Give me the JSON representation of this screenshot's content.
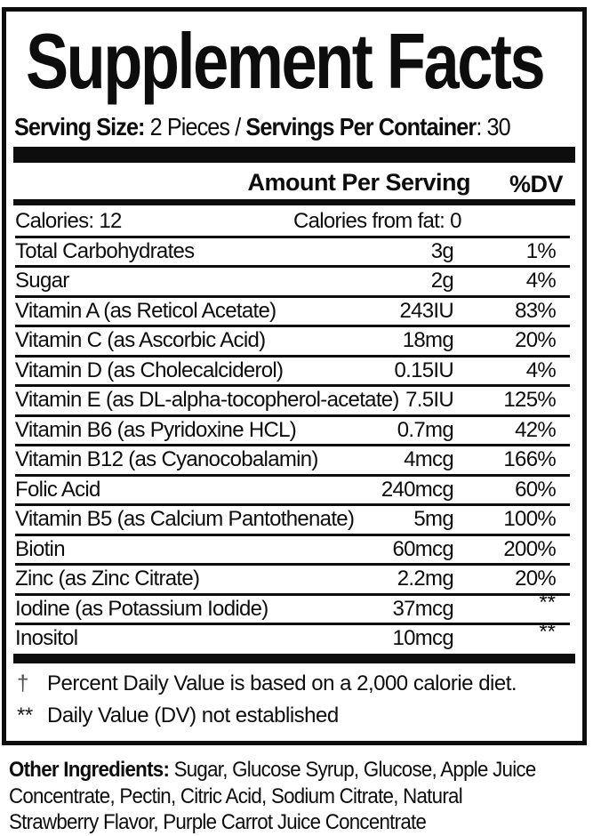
{
  "title": "Supplement Facts",
  "serving": {
    "label1": "Serving Size:",
    "value1": " 2 Pieces / ",
    "label2": "Servings Per Container",
    "value2": ": 30"
  },
  "header": {
    "amount": "Amount Per Serving",
    "dv": "%DV"
  },
  "table": {
    "calories": {
      "left": "Calories: 12",
      "right": "Calories from fat: 0"
    },
    "rows": [
      {
        "name": "Total Carbohydrates",
        "amount": "3g",
        "dv": "1%"
      },
      {
        "name": "Sugar",
        "amount": "2g",
        "dv": "4%"
      },
      {
        "name": "Vitamin A (as Reticol Acetate)",
        "amount": "243IU",
        "dv": "83%"
      },
      {
        "name": "Vitamin C (as Ascorbic Acid)",
        "amount": "18mg",
        "dv": "20%"
      },
      {
        "name": "Vitamin D (as Cholecalciderol)",
        "amount": "0.15IU",
        "dv": "4%"
      },
      {
        "name": "Vitamin E (as DL-alpha-tocopherol-acetate)",
        "amount": "7.5IU",
        "dv": "125%"
      },
      {
        "name": "Vitamin B6 (as Pyridoxine HCL)",
        "amount": "0.7mg",
        "dv": "42%"
      },
      {
        "name": "Vitamin B12 (as Cyanocobalamin)",
        "amount": "4mcg",
        "dv": "166%"
      },
      {
        "name": "Folic Acid",
        "amount": "240mcg",
        "dv": "60%"
      },
      {
        "name": "Vitamin B5 (as Calcium Pantothenate)",
        "amount": "5mg",
        "dv": "100%"
      },
      {
        "name": "Biotin",
        "amount": "60mcg",
        "dv": "200%"
      },
      {
        "name": "Zinc (as Zinc Citrate)",
        "amount": "2.2mg",
        "dv": "20%"
      },
      {
        "name": "Iodine (as Potassium Iodide)",
        "amount": "37mcg",
        "dv": "**"
      },
      {
        "name": "Inositol",
        "amount": "10mcg",
        "dv": "**"
      }
    ]
  },
  "footnotes": {
    "dagger_symbol": "†",
    "dagger_text": "Percent Daily Value is based on a 2,000 calorie diet.",
    "stars_symbol": "**",
    "stars_text": "Daily Value (DV) not established"
  },
  "other_ingredients": {
    "label": "Other Ingredients:",
    "line1_rest": " Sugar, Glucose Syrup, Glucose, Apple Juice",
    "line2": "Concentrate, Pectin, Citric Acid, Sodium Citrate, Natural",
    "line3": "Strawberry Flavor, Purple Carrot Juice Concentrate"
  },
  "colors": {
    "ink": "#0d0d0d",
    "background": "#ffffff"
  }
}
